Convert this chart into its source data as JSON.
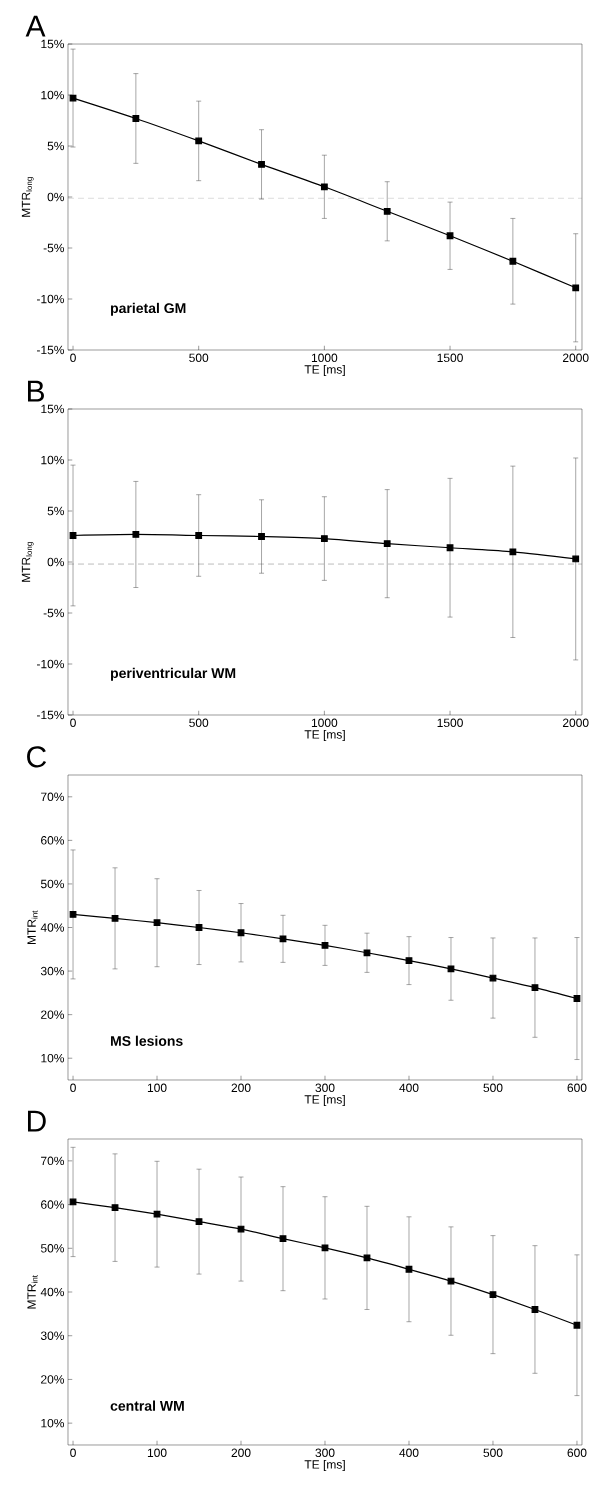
{
  "chart_data": [
    {
      "type": "line",
      "title": "A",
      "xlabel": "TE [ms]",
      "ylabel": "MTR$_{long}$",
      "annotations": [
        "parietal GM"
      ],
      "marker": "square",
      "line_style": "solid",
      "x": [
        0,
        250,
        500,
        750,
        1000,
        1250,
        1500,
        1750,
        2000
      ],
      "series": [
        {
          "color": "#000000",
          "values": [
            9.7,
            7.7,
            5.5,
            3.2,
            1.0,
            -1.4,
            -3.8,
            -6.3,
            -8.9
          ],
          "errors": [
            4.8,
            4.4,
            3.9,
            3.4,
            3.1,
            2.9,
            3.3,
            4.2,
            5.3
          ]
        }
      ],
      "xlim": [
        -20,
        2025
      ],
      "ylim": [
        -15,
        15
      ],
      "xticks": [
        0,
        500,
        1000,
        1500,
        2000
      ],
      "yticks": [
        {
          "value": -15,
          "label": "-15%"
        },
        {
          "value": -10,
          "label": "-10%"
        },
        {
          "value": -5,
          "label": "-5%"
        },
        {
          "value": 0,
          "label": "0%"
        },
        {
          "value": 5,
          "label": "5%"
        },
        {
          "value": 10,
          "label": "10%"
        },
        {
          "value": 15,
          "label": "15%"
        }
      ],
      "ref_lines": [
        {
          "axis": "y",
          "value": -0.1,
          "color": "#555555",
          "line_style": "dashed"
        }
      ]
    },
    {
      "type": "line",
      "title": "B",
      "xlabel": "TE [ms]",
      "ylabel": "MTR$_{long}$",
      "annotations": [
        "periventricular WM"
      ],
      "marker": "square",
      "line_style": "solid",
      "x": [
        0,
        250,
        500,
        750,
        1000,
        1250,
        1500,
        1750,
        2000
      ],
      "series": [
        {
          "color": "#000000",
          "values": [
            2.6,
            2.7,
            2.6,
            2.5,
            2.3,
            1.8,
            1.4,
            1.0,
            0.3
          ],
          "errors": [
            6.9,
            5.2,
            4.0,
            3.6,
            4.1,
            5.3,
            6.8,
            8.4,
            9.9
          ]
        }
      ],
      "xlim": [
        -20,
        2025
      ],
      "ylim": [
        -15,
        15
      ],
      "xticks": [
        0,
        500,
        1000,
        1500,
        2000
      ],
      "yticks": [
        {
          "value": -15,
          "label": "-15%"
        },
        {
          "value": -10,
          "label": "-10%"
        },
        {
          "value": -5,
          "label": "-5%"
        },
        {
          "value": 0,
          "label": "0%"
        },
        {
          "value": 5,
          "label": "5%"
        },
        {
          "value": 10,
          "label": "10%"
        },
        {
          "value": 15,
          "label": "15%"
        }
      ],
      "ref_lines": [
        {
          "axis": "y",
          "value": -0.2,
          "color": "#555555",
          "line_style": "dashed"
        }
      ]
    },
    {
      "type": "line",
      "title": "C",
      "xlabel": "TE [ms]",
      "ylabel": "MTR$_{int}$",
      "annotations": [
        "MS lesions"
      ],
      "marker": "square",
      "line_style": "solid",
      "x": [
        0,
        50,
        100,
        150,
        200,
        250,
        300,
        350,
        400,
        450,
        500,
        550,
        600
      ],
      "series": [
        {
          "color": "#000000",
          "values": [
            43.0,
            42.1,
            41.1,
            40.0,
            38.8,
            37.4,
            35.9,
            34.2,
            32.4,
            30.5,
            28.4,
            26.2,
            23.7
          ],
          "errors": [
            14.8,
            11.6,
            10.1,
            8.5,
            6.7,
            5.4,
            4.6,
            4.5,
            5.5,
            7.2,
            9.2,
            11.4,
            14.0
          ]
        }
      ],
      "xlim": [
        -6,
        606
      ],
      "ylim": [
        5,
        75
      ],
      "xticks": [
        0,
        100,
        200,
        300,
        400,
        500,
        600
      ],
      "yticks": [
        {
          "value": 10,
          "label": "10%"
        },
        {
          "value": 20,
          "label": "20%"
        },
        {
          "value": 30,
          "label": "30%"
        },
        {
          "value": 40,
          "label": "40%"
        },
        {
          "value": 50,
          "label": "50%"
        },
        {
          "value": 60,
          "label": "60%"
        },
        {
          "value": 70,
          "label": "70%"
        }
      ]
    },
    {
      "type": "line",
      "title": "D",
      "xlabel": "TE [ms]",
      "ylabel": "MTR$_{int}$",
      "annotations": [
        "central WM"
      ],
      "marker": "square",
      "line_style": "solid",
      "x": [
        0,
        50,
        100,
        150,
        200,
        250,
        300,
        350,
        400,
        450,
        500,
        550,
        600
      ],
      "series": [
        {
          "color": "#000000",
          "values": [
            60.6,
            59.3,
            57.8,
            56.1,
            54.4,
            52.2,
            50.1,
            47.8,
            45.2,
            42.5,
            39.4,
            36.0,
            32.4
          ],
          "errors": [
            12.5,
            12.3,
            12.1,
            12.0,
            11.9,
            11.9,
            11.7,
            11.8,
            12.0,
            12.4,
            13.5,
            14.6,
            16.1
          ]
        }
      ],
      "xlim": [
        -6,
        606
      ],
      "ylim": [
        5,
        75
      ],
      "xticks": [
        0,
        100,
        200,
        300,
        400,
        500,
        600
      ],
      "yticks": [
        {
          "value": 10,
          "label": "10%"
        },
        {
          "value": 20,
          "label": "20%"
        },
        {
          "value": 30,
          "label": "30%"
        },
        {
          "value": 40,
          "label": "40%"
        },
        {
          "value": 50,
          "label": "50%"
        },
        {
          "value": 60,
          "label": "60%"
        },
        {
          "value": 70,
          "label": "70%"
        }
      ]
    }
  ]
}
